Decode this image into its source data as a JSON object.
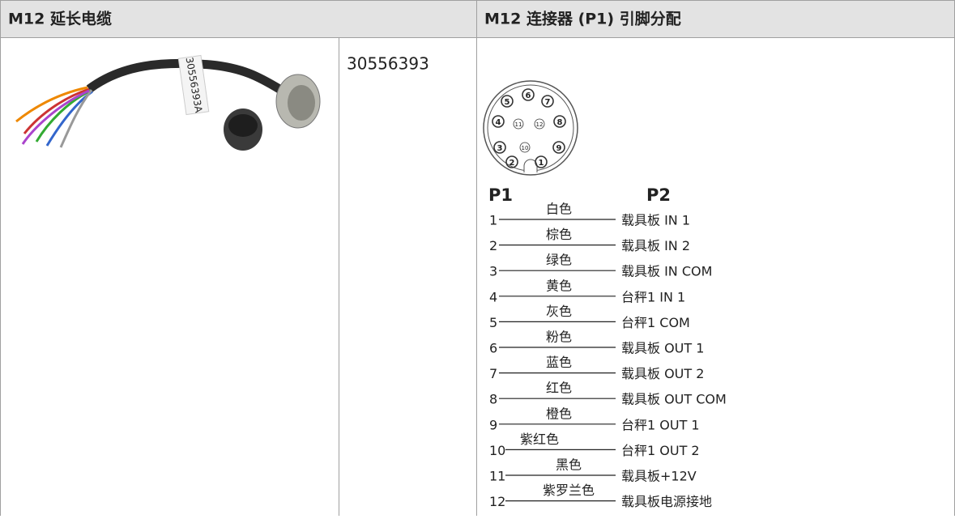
{
  "header": {
    "left": "M12 延长电缆",
    "right": "M12 连接器 (P1) 引脚分配"
  },
  "table": {
    "part_number": "30556393",
    "cable_label": "30556393A"
  },
  "connector": {
    "face_pins": [
      "1",
      "2",
      "3",
      "4",
      "5",
      "6",
      "7",
      "8",
      "9",
      "10",
      "11",
      "12"
    ],
    "label_p1": "P1",
    "label_p2": "P2",
    "pins": [
      {
        "pin": "1",
        "color": "白色",
        "signal": "载具板 IN 1"
      },
      {
        "pin": "2",
        "color": "棕色",
        "signal": "载具板 IN 2"
      },
      {
        "pin": "3",
        "color": "绿色",
        "signal": "载具板 IN COM"
      },
      {
        "pin": "4",
        "color": "黄色",
        "signal": "台秤1 IN 1"
      },
      {
        "pin": "5",
        "color": "灰色",
        "signal": "台秤1 COM"
      },
      {
        "pin": "6",
        "color": "粉色",
        "signal": "载具板 OUT 1"
      },
      {
        "pin": "7",
        "color": "蓝色",
        "signal": "载具板 OUT 2"
      },
      {
        "pin": "8",
        "color": "红色",
        "signal": "载具板 OUT COM"
      },
      {
        "pin": "9",
        "color": "橙色",
        "signal": "台秤1 OUT 1"
      },
      {
        "pin": "10",
        "color": "紫红色",
        "signal": "台秤1 OUT 2"
      },
      {
        "pin": "11",
        "color": "黑色",
        "signal": "载具板+12V"
      },
      {
        "pin": "12",
        "color": "紫罗兰色",
        "signal": "载具板电源接地"
      }
    ]
  }
}
